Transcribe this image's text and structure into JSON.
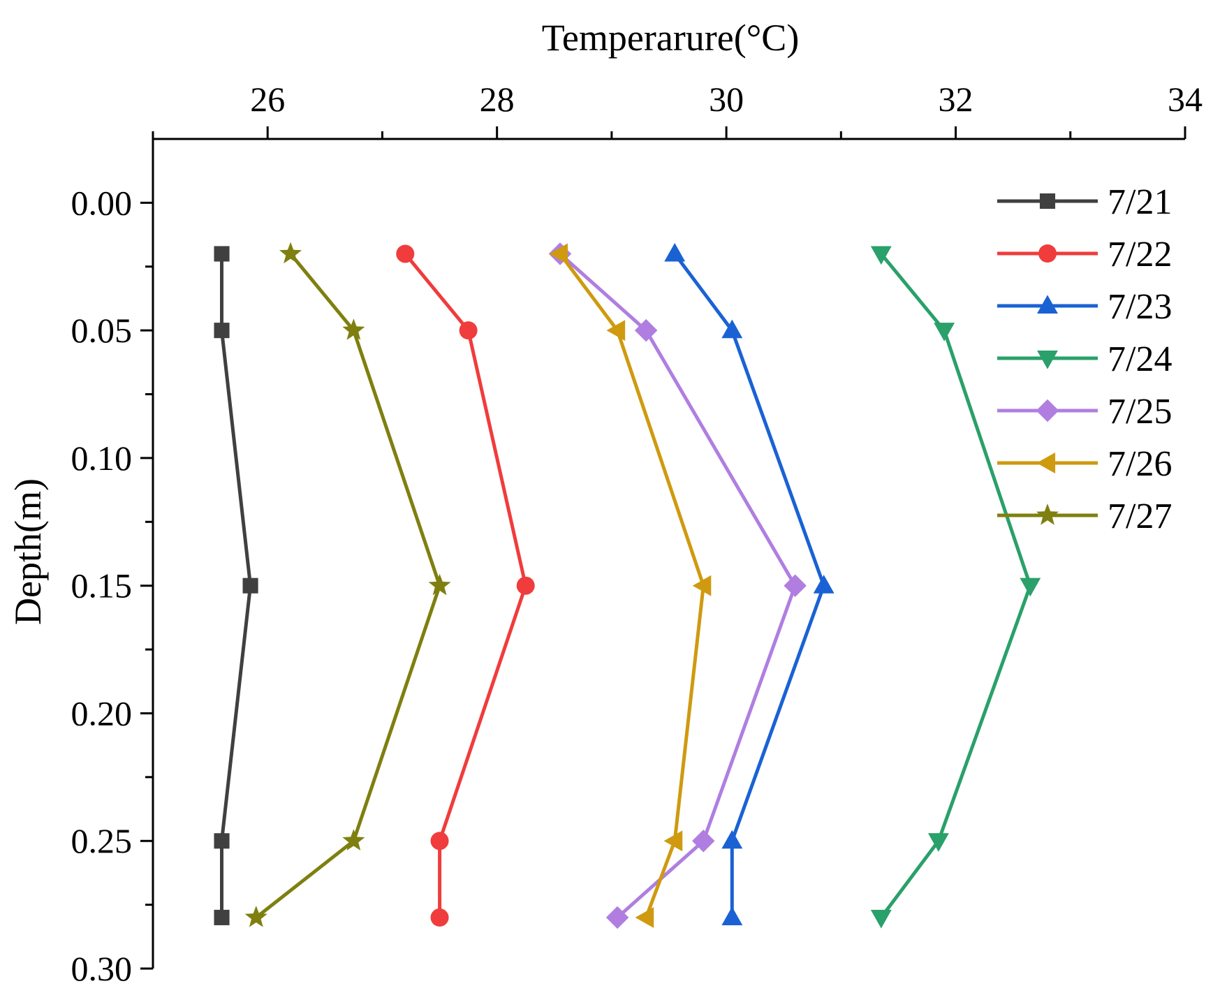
{
  "chart_data": {
    "type": "line",
    "orientation": "depth-profile",
    "xlabel": "Temperarure(°C)",
    "ylabel": "Depth(m)",
    "xlim": [
      25,
      34
    ],
    "ylim": [
      0.3,
      -0.025
    ],
    "x_ticks": [
      26,
      28,
      30,
      32,
      34
    ],
    "x_tick_labels": [
      "26",
      "28",
      "30",
      "32",
      "34"
    ],
    "y_ticks": [
      0.0,
      0.05,
      0.1,
      0.15,
      0.2,
      0.25,
      0.3
    ],
    "y_tick_labels": [
      "0.00",
      "0.05",
      "0.10",
      "0.15",
      "0.20",
      "0.25",
      "0.30"
    ],
    "x_axis_position": "top",
    "legend_position": "top-right",
    "depths": [
      0.02,
      0.05,
      0.15,
      0.25,
      0.28
    ],
    "series": [
      {
        "name": "7/21",
        "color": "#404040",
        "marker": "square",
        "values": [
          25.6,
          25.6,
          25.85,
          25.6,
          25.6
        ]
      },
      {
        "name": "7/22",
        "color": "#f03c3c",
        "marker": "circle",
        "values": [
          27.2,
          27.75,
          28.25,
          27.5,
          27.5
        ]
      },
      {
        "name": "7/23",
        "color": "#1a62d4",
        "marker": "triangle-up",
        "values": [
          29.55,
          30.05,
          30.85,
          30.05,
          30.05
        ]
      },
      {
        "name": "7/24",
        "color": "#2aa06a",
        "marker": "triangle-down",
        "values": [
          31.35,
          31.9,
          32.65,
          31.85,
          31.35
        ]
      },
      {
        "name": "7/25",
        "color": "#b07ee0",
        "marker": "diamond",
        "values": [
          28.55,
          29.3,
          30.6,
          29.8,
          29.05
        ]
      },
      {
        "name": "7/26",
        "color": "#cf9a10",
        "marker": "triangle-left",
        "values": [
          28.55,
          29.05,
          29.8,
          29.55,
          29.3
        ]
      },
      {
        "name": "7/27",
        "color": "#7f7f10",
        "marker": "star",
        "values": [
          26.2,
          26.75,
          27.5,
          26.75,
          25.9
        ]
      }
    ]
  }
}
